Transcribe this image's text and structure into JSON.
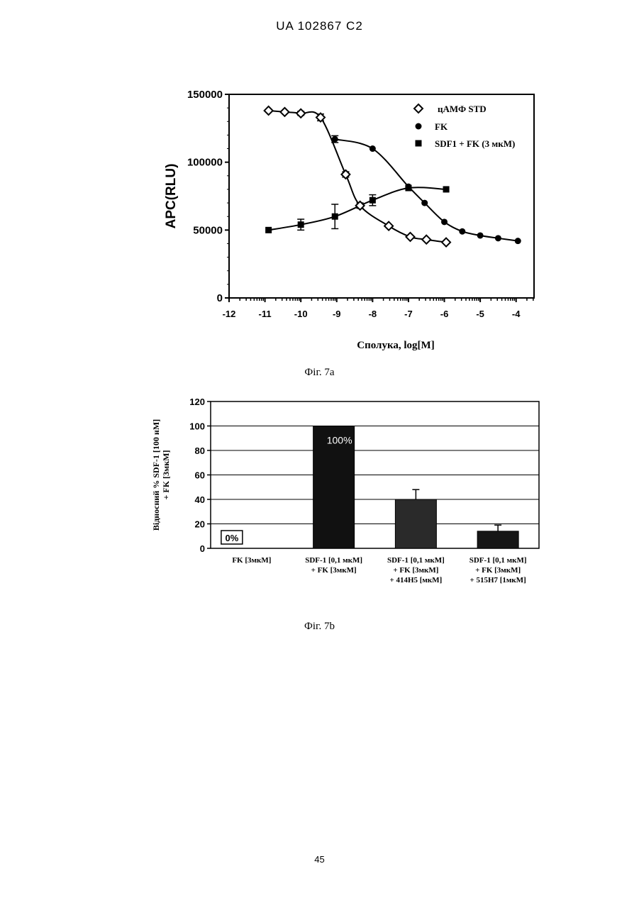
{
  "header": {
    "text": "UA   102867   C2"
  },
  "page_number": "45",
  "chart_data": [
    {
      "type": "scatter",
      "caption": "Фіг. 7а",
      "xlabel": "Сполука, log[M]",
      "ylabel": "APC(RLU)",
      "xlim": [
        -12,
        -3.5
      ],
      "ylim": [
        0,
        150000
      ],
      "xticks": [
        -12,
        -11,
        -10,
        -9,
        -8,
        -7,
        -6,
        -5,
        -4
      ],
      "xtick_labels": [
        "-12",
        "-11",
        "-10",
        "-9",
        "-8",
        "-7",
        "-6",
        "-5",
        "-4"
      ],
      "yticks": [
        0,
        50000,
        100000,
        150000
      ],
      "ytick_labels": [
        "0",
        "50000",
        "100000",
        "150000"
      ],
      "legend_position": "top-right",
      "series": [
        {
          "name": "цАМФ STD",
          "marker": "open-diamond",
          "x": [
            -10.9,
            -10.45,
            -10.0,
            -9.45,
            -8.75,
            -8.35,
            -7.55,
            -6.95,
            -6.5,
            -5.95
          ],
          "y": [
            138000,
            137000,
            136000,
            133000,
            91000,
            68000,
            53000,
            45000,
            43000,
            41000
          ],
          "errors": [
            0,
            0,
            1500,
            2500,
            2000,
            2000,
            0,
            0,
            0,
            0
          ]
        },
        {
          "name": "FK",
          "marker": "filled-circle",
          "x": [
            -9.05,
            -8.0,
            -7.0,
            -6.55,
            -6.0,
            -5.5,
            -5.0,
            -4.5,
            -3.95
          ],
          "y": [
            117000,
            110000,
            82000,
            70000,
            56000,
            49000,
            46000,
            44000,
            42000
          ],
          "errors": [
            2500,
            0,
            0,
            0,
            0,
            0,
            0,
            0,
            0
          ]
        },
        {
          "name": "SDF1 + FK (3 мкМ)",
          "marker": "filled-square",
          "x": [
            -10.9,
            -10.0,
            -9.05,
            -8.0,
            -7.0,
            -5.95
          ],
          "y": [
            50000,
            54000,
            60000,
            72000,
            81000,
            80000
          ],
          "errors": [
            0,
            4000,
            9000,
            4000,
            0,
            0
          ]
        }
      ]
    },
    {
      "type": "bar",
      "caption": "Фіг. 7b",
      "ylabel": "Відносний % SDF-1 [100 нМ] + FK [3мкМ]",
      "ylim": [
        0,
        120
      ],
      "yticks": [
        0,
        20,
        40,
        60,
        80,
        100,
        120
      ],
      "ytick_labels": [
        "0",
        "20",
        "40",
        "60",
        "80",
        "100",
        "120"
      ],
      "grid": true,
      "categories": [
        [
          "FK [3мкМ]"
        ],
        [
          "SDF-1 [0,1 мкМ]",
          "+ FK [3мкМ]"
        ],
        [
          "SDF-1 [0,1 мкМ]",
          "+ FK [3мкМ]",
          "+ 414H5 [мкМ]"
        ],
        [
          "SDF-1 [0,1 мкМ]",
          "+ FK [3мкМ]",
          "+ 515H7 [1мкМ]"
        ]
      ],
      "values": [
        0,
        100,
        40,
        14
      ],
      "errors": [
        0,
        0,
        8,
        5
      ],
      "bar_colors": [
        "#000000",
        "#111111",
        "#2a2a2a",
        "#161616"
      ],
      "data_labels": [
        "0%",
        "100%",
        "",
        ""
      ]
    }
  ]
}
